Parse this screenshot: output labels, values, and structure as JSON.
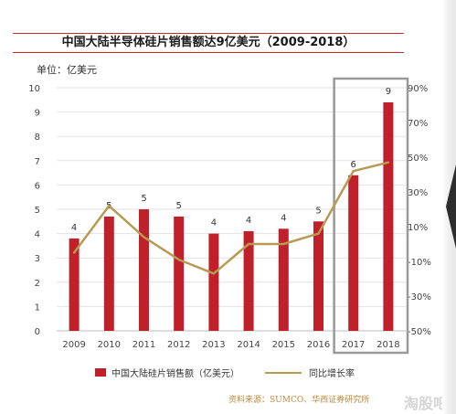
{
  "chart_data": {
    "type": "bar",
    "title": "中国大陆半导体硅片销售额达9亿美元（2009-2018）",
    "unit_label": "单位：亿美元",
    "categories": [
      "2009",
      "2010",
      "2011",
      "2012",
      "2013",
      "2014",
      "2015",
      "2016",
      "2017",
      "2018"
    ],
    "series": [
      {
        "name": "中国大陆硅片销售额（亿美元）",
        "type": "bar",
        "axis": "left",
        "values": [
          3.8,
          4.7,
          5.0,
          4.7,
          4.0,
          4.1,
          4.2,
          4.5,
          6.4,
          9.4
        ],
        "labels": [
          "4",
          "5",
          "5",
          "5",
          "4",
          "4",
          "4",
          "5",
          "6",
          "9"
        ],
        "color": "#c0202a"
      },
      {
        "name": "同比增长率",
        "type": "line",
        "axis": "right",
        "values": [
          -5,
          22,
          4,
          -9,
          -17,
          0,
          0,
          6,
          42,
          47
        ],
        "color": "#b89a52"
      }
    ],
    "y_left": {
      "min": 0,
      "max": 10,
      "ticks": [
        "0",
        "1",
        "2",
        "3",
        "4",
        "5",
        "6",
        "7",
        "8",
        "9",
        "10"
      ]
    },
    "y_right": {
      "min": -50,
      "max": 90,
      "ticks": [
        "-50%",
        "-30%",
        "-10%",
        "10%",
        "30%",
        "50%",
        "70%",
        "90%"
      ]
    },
    "highlight_categories": [
      "2017",
      "2018"
    ],
    "grid": true,
    "legend_position": "bottom"
  },
  "source": "资料来源：SUMCO、华西证券研究所",
  "watermark": "淘股吧",
  "colors": {
    "bar": "#c0202a",
    "line": "#b89a52",
    "title_rule": "#cc2a2a",
    "highlight_box": "#999999"
  }
}
